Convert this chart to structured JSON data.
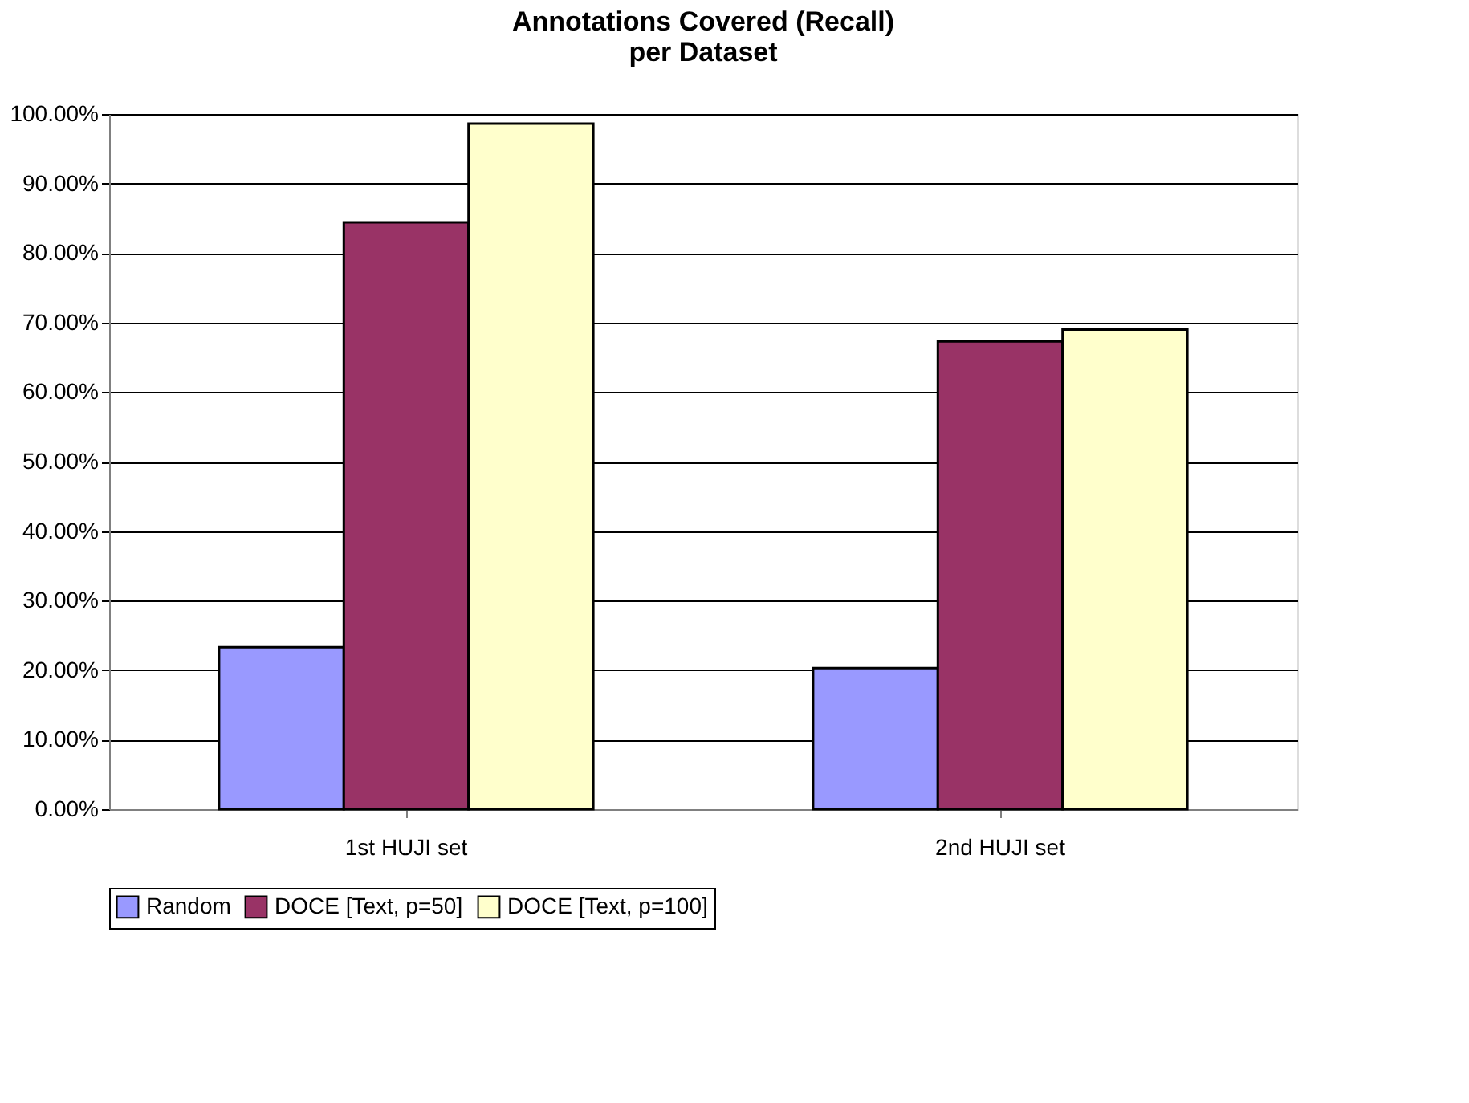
{
  "chart_data": {
    "type": "bar",
    "title": "Annotations Covered (Recall)\nper Dataset",
    "categories": [
      "1st HUJI set",
      "2nd HUJI set"
    ],
    "series": [
      {
        "name": "Random",
        "color": "#9999ff",
        "values": [
          23.3,
          20.3
        ]
      },
      {
        "name": "DOCE [Text, p=50]",
        "color": "#993366",
        "values": [
          84.4,
          67.3
        ]
      },
      {
        "name": "DOCE [Text, p=100]",
        "color": "#ffffcc",
        "values": [
          98.6,
          69.0
        ]
      }
    ],
    "ylim": [
      0,
      100
    ],
    "yticks": [
      {
        "value": 0,
        "label": "0.00%"
      },
      {
        "value": 10,
        "label": "10.00%"
      },
      {
        "value": 20,
        "label": "20.00%"
      },
      {
        "value": 30,
        "label": "30.00%"
      },
      {
        "value": 40,
        "label": "40.00%"
      },
      {
        "value": 50,
        "label": "50.00%"
      },
      {
        "value": 60,
        "label": "60.00%"
      },
      {
        "value": 70,
        "label": "70.00%"
      },
      {
        "value": 80,
        "label": "80.00%"
      },
      {
        "value": 90,
        "label": "90.00%"
      },
      {
        "value": 100,
        "label": "100.00%"
      }
    ],
    "grid": "y",
    "legend": "bottom"
  }
}
